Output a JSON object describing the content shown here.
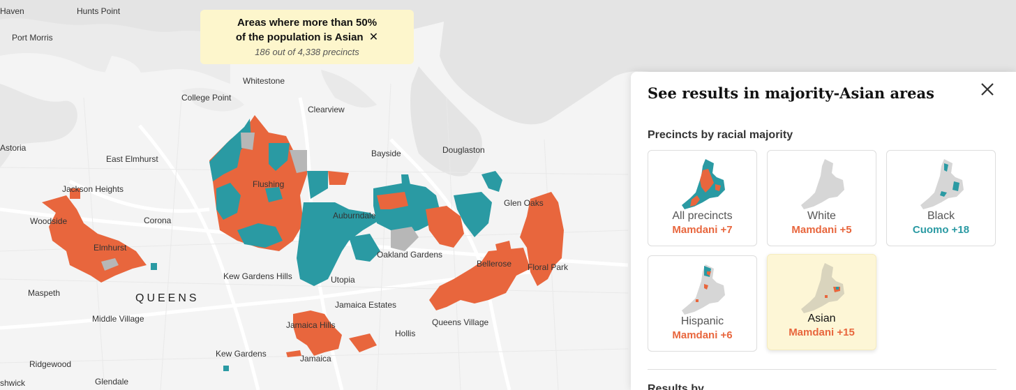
{
  "colors": {
    "mamdani": "#e8663d",
    "cuomo": "#2a9aa3",
    "tie": "#b7b7b7",
    "water": "#e3e3e3",
    "land": "#f4f4f4",
    "highlight": "#fdf6cc"
  },
  "places": [
    {
      "id": "haven",
      "name": "Haven"
    },
    {
      "id": "hunts-point",
      "name": "Hunts Point"
    },
    {
      "id": "port-morris",
      "name": "Port Morris"
    },
    {
      "id": "whitestone",
      "name": "Whitestone"
    },
    {
      "id": "college-point",
      "name": "College Point"
    },
    {
      "id": "clearview",
      "name": "Clearview"
    },
    {
      "id": "astoria",
      "name": "Astoria"
    },
    {
      "id": "east-elmhurst",
      "name": "East Elmhurst"
    },
    {
      "id": "bayside",
      "name": "Bayside"
    },
    {
      "id": "douglaston",
      "name": "Douglaston"
    },
    {
      "id": "jackson-heights",
      "name": "Jackson Heights"
    },
    {
      "id": "flushing",
      "name": "Flushing"
    },
    {
      "id": "glen-oaks",
      "name": "Glen Oaks"
    },
    {
      "id": "woodside",
      "name": "Woodside"
    },
    {
      "id": "corona",
      "name": "Corona"
    },
    {
      "id": "auburndale",
      "name": "Auburndale"
    },
    {
      "id": "elmhurst",
      "name": "Elmhurst"
    },
    {
      "id": "oakland-gardens",
      "name": "Oakland Gardens"
    },
    {
      "id": "bellerose",
      "name": "Bellerose"
    },
    {
      "id": "floral-park",
      "name": "Floral Park"
    },
    {
      "id": "kew-gardens-hills",
      "name": "Kew Gardens Hills"
    },
    {
      "id": "utopia",
      "name": "Utopia"
    },
    {
      "id": "maspeth",
      "name": "Maspeth"
    },
    {
      "id": "queens",
      "name": "QUEENS"
    },
    {
      "id": "jamaica-estates",
      "name": "Jamaica Estates"
    },
    {
      "id": "middle-village",
      "name": "Middle Village"
    },
    {
      "id": "jamaica-hills",
      "name": "Jamaica Hills"
    },
    {
      "id": "queens-village",
      "name": "Queens Village"
    },
    {
      "id": "hollis",
      "name": "Hollis"
    },
    {
      "id": "kew-gardens",
      "name": "Kew Gardens"
    },
    {
      "id": "ridgewood",
      "name": "Ridgewood"
    },
    {
      "id": "jamaica",
      "name": "Jamaica"
    },
    {
      "id": "glendale",
      "name": "Glendale"
    },
    {
      "id": "shwick",
      "name": "shwick"
    }
  ],
  "tooltip": {
    "line1": "Areas where more than 50%",
    "line2": "of the population is Asian",
    "close_icon": "close-icon",
    "subtitle": "186 out of 4,338 precincts"
  },
  "panel": {
    "title": "See results in majority-Asian areas",
    "close_icon": "close-icon",
    "section": "Precincts by racial majority",
    "cards": [
      {
        "id": "all",
        "label": "All precincts",
        "result": "Mamdani +7",
        "winner": "mamdani",
        "active": false
      },
      {
        "id": "white",
        "label": "White",
        "result": "Mamdani +5",
        "winner": "mamdani",
        "active": false
      },
      {
        "id": "black",
        "label": "Black",
        "result": "Cuomo +18",
        "winner": "cuomo",
        "active": false
      },
      {
        "id": "hispanic",
        "label": "Hispanic",
        "result": "Mamdani +6",
        "winner": "mamdani",
        "active": false
      },
      {
        "id": "asian",
        "label": "Asian",
        "result": "Mamdani +15",
        "winner": "mamdani",
        "active": true
      }
    ],
    "next_section": "Results by ..."
  }
}
